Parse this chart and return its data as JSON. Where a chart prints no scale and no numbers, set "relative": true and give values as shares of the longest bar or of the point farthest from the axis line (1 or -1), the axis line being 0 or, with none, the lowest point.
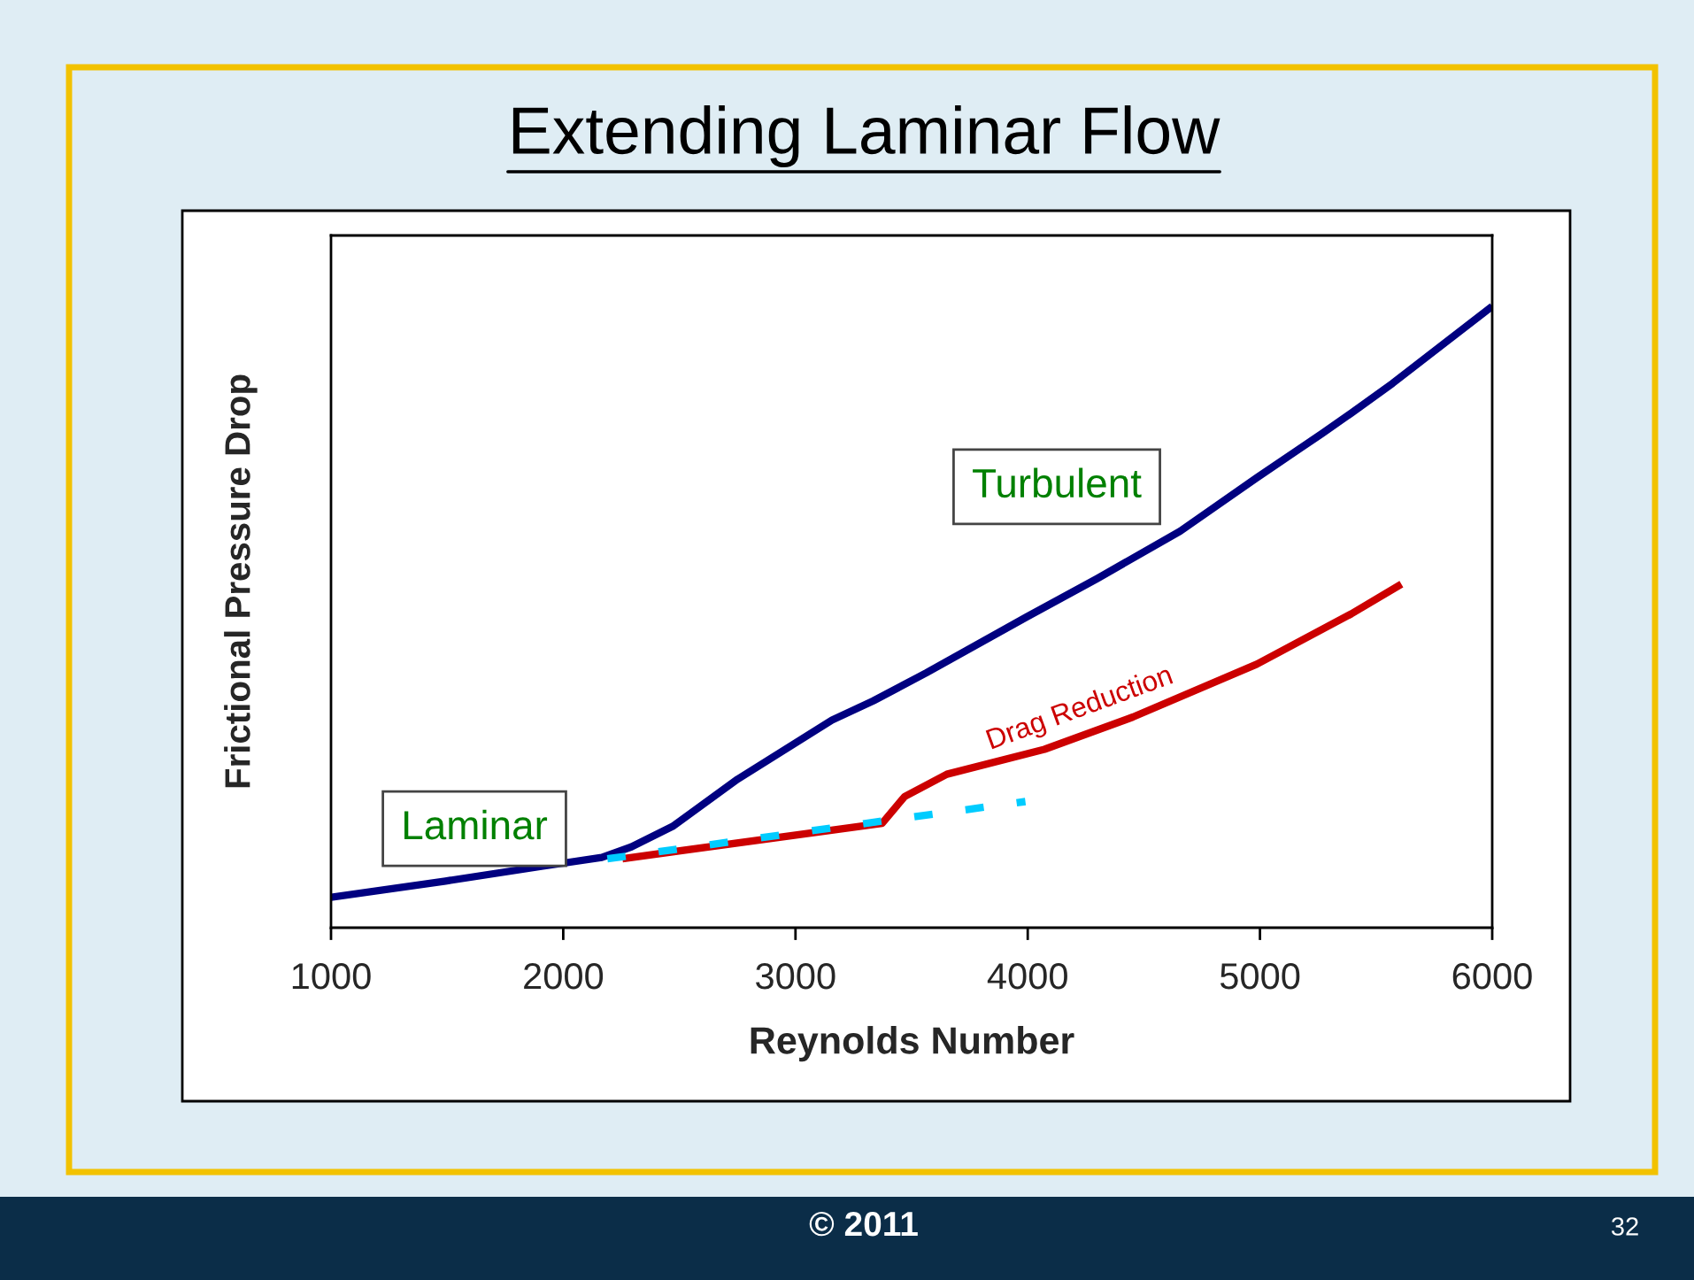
{
  "chart_data": {
    "type": "line",
    "title": "Extending Laminar Flow",
    "xlabel": "Reynolds Number",
    "ylabel": "Frictional Pressure Drop",
    "relative": true,
    "xlim": [
      1000,
      6000
    ],
    "xticks": [
      1000,
      2000,
      3000,
      4000,
      5000,
      6000
    ],
    "series": [
      {
        "color": "#000080",
        "x": [
          1000,
          1493,
          1912,
          2166,
          2293,
          2471,
          2751,
          3157,
          3335,
          3563,
          3995,
          4300,
          4656,
          4986,
          5266,
          5393,
          5571,
          5799,
          6000
        ],
        "values": [
          0.049,
          0.075,
          0.099,
          0.113,
          0.13,
          0.163,
          0.239,
          0.334,
          0.365,
          0.41,
          0.5,
          0.562,
          0.638,
          0.724,
          0.795,
          0.828,
          0.876,
          0.942,
          1.0
        ]
      },
      {
        "name": "Drag Reduction",
        "color": "#cc0000",
        "x": [
          2255,
          3373,
          3470,
          3652,
          4072,
          4453,
          4986,
          5393,
          5609
        ],
        "values": [
          0.111,
          0.168,
          0.211,
          0.247,
          0.287,
          0.339,
          0.424,
          0.505,
          0.553
        ]
      },
      {
        "color": "#00ccff",
        "line_style": "dashed",
        "x": [
          2190,
          3990
        ],
        "values": [
          0.111,
          0.203
        ]
      }
    ],
    "annotations": [
      "Turbulent",
      "Laminar",
      "© 2011",
      "32"
    ]
  }
}
